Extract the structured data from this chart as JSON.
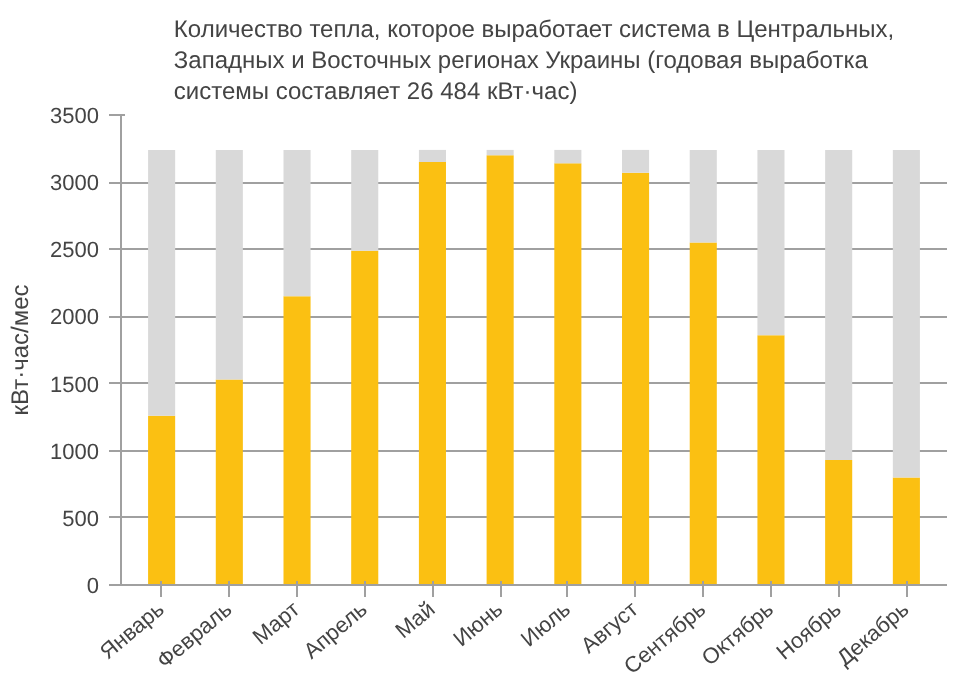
{
  "chart_data": {
    "type": "bar",
    "stacked": true,
    "title": "Количество тепла, которое выработает система в Центральных, Западных и Восточных регионах Украины (годовая выработка системы составляет 26 484 кВт·час)",
    "ylabel": "кВт·час/мес",
    "categories": [
      "Январь",
      "Февраль",
      "Март",
      "Апрель",
      "Май",
      "Июнь",
      "Июль",
      "Август",
      "Сентябрь",
      "Октябрь",
      "Ноябрь",
      "Декабрь"
    ],
    "series": [
      {
        "color": "#fbc012",
        "values": [
          1260,
          1530,
          2150,
          2490,
          3150,
          3200,
          3140,
          3070,
          2550,
          1860,
          930,
          800
        ]
      },
      {
        "color": "#d9d9d9",
        "values": [
          1980,
          1710,
          1090,
          750,
          90,
          40,
          100,
          170,
          690,
          1380,
          2310,
          2440
        ]
      }
    ],
    "ylim": [
      0,
      3500
    ],
    "yticks": [
      0,
      500,
      1000,
      1500,
      2000,
      2500,
      3000,
      3500
    ],
    "grid": "y"
  }
}
